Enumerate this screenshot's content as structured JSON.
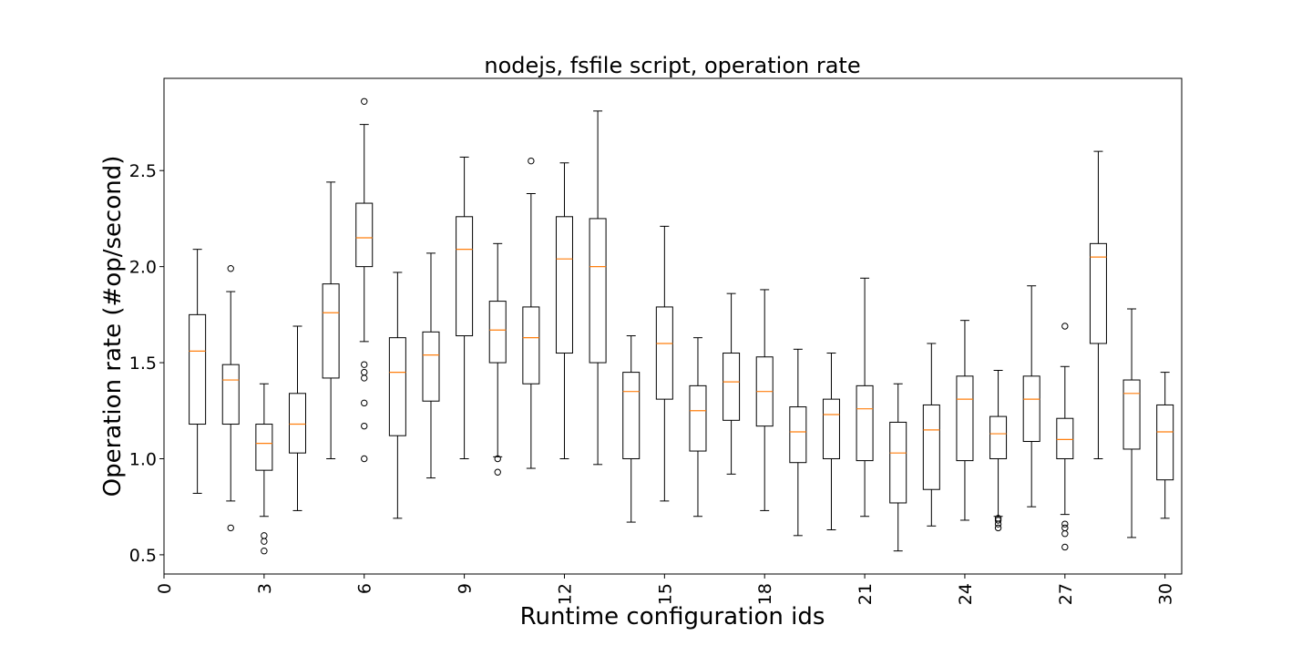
{
  "chart_data": {
    "type": "boxplot",
    "title": "nodejs, fsfile script, operation rate",
    "xlabel": "Runtime configuration ids",
    "ylabel": "Operation rate (#op/second)",
    "xlim": [
      0,
      30.5
    ],
    "ylim": [
      0.4,
      2.98
    ],
    "xticks": [
      "0",
      "3",
      "6",
      "9",
      "12",
      "15",
      "18",
      "21",
      "24",
      "27",
      "30"
    ],
    "yticks": [
      "0.5",
      "1.0",
      "1.5",
      "2.0",
      "2.5"
    ],
    "grid": false,
    "colors": {
      "median": "#ff7f0e",
      "box": "#000000",
      "background": "#ffffff"
    },
    "boxes": [
      {
        "id": 1,
        "whisker_low": 0.82,
        "q1": 1.18,
        "median": 1.56,
        "q3": 1.75,
        "whisker_high": 2.09,
        "outliers": []
      },
      {
        "id": 2,
        "whisker_low": 0.78,
        "q1": 1.18,
        "median": 1.41,
        "q3": 1.49,
        "whisker_high": 1.87,
        "outliers": [
          0.64,
          1.99
        ]
      },
      {
        "id": 3,
        "whisker_low": 0.7,
        "q1": 0.94,
        "median": 1.08,
        "q3": 1.18,
        "whisker_high": 1.39,
        "outliers": [
          0.52,
          0.57,
          0.6
        ]
      },
      {
        "id": 4,
        "whisker_low": 0.73,
        "q1": 1.03,
        "median": 1.18,
        "q3": 1.34,
        "whisker_high": 1.69,
        "outliers": []
      },
      {
        "id": 5,
        "whisker_low": 1.0,
        "q1": 1.42,
        "median": 1.76,
        "q3": 1.91,
        "whisker_high": 2.44,
        "outliers": []
      },
      {
        "id": 6,
        "whisker_low": 1.61,
        "q1": 2.0,
        "median": 2.15,
        "q3": 2.33,
        "whisker_high": 2.74,
        "outliers": [
          1.0,
          1.17,
          1.29,
          1.42,
          1.45,
          1.49,
          2.86
        ]
      },
      {
        "id": 7,
        "whisker_low": 0.69,
        "q1": 1.12,
        "median": 1.45,
        "q3": 1.63,
        "whisker_high": 1.97,
        "outliers": []
      },
      {
        "id": 8,
        "whisker_low": 0.9,
        "q1": 1.3,
        "median": 1.54,
        "q3": 1.66,
        "whisker_high": 2.07,
        "outliers": []
      },
      {
        "id": 9,
        "whisker_low": 1.0,
        "q1": 1.64,
        "median": 2.09,
        "q3": 2.26,
        "whisker_high": 2.57,
        "outliers": []
      },
      {
        "id": 10,
        "whisker_low": 1.01,
        "q1": 1.5,
        "median": 1.67,
        "q3": 1.82,
        "whisker_high": 2.12,
        "outliers": [
          0.93,
          1.0
        ]
      },
      {
        "id": 11,
        "whisker_low": 0.95,
        "q1": 1.39,
        "median": 1.63,
        "q3": 1.79,
        "whisker_high": 2.38,
        "outliers": [
          2.55
        ]
      },
      {
        "id": 12,
        "whisker_low": 1.0,
        "q1": 1.55,
        "median": 2.04,
        "q3": 2.26,
        "whisker_high": 2.54,
        "outliers": []
      },
      {
        "id": 13,
        "whisker_low": 0.97,
        "q1": 1.5,
        "median": 2.0,
        "q3": 2.25,
        "whisker_high": 2.81,
        "outliers": []
      },
      {
        "id": 14,
        "whisker_low": 0.67,
        "q1": 1.0,
        "median": 1.35,
        "q3": 1.45,
        "whisker_high": 1.64,
        "outliers": []
      },
      {
        "id": 15,
        "whisker_low": 0.78,
        "q1": 1.31,
        "median": 1.6,
        "q3": 1.79,
        "whisker_high": 2.21,
        "outliers": []
      },
      {
        "id": 16,
        "whisker_low": 0.7,
        "q1": 1.04,
        "median": 1.25,
        "q3": 1.38,
        "whisker_high": 1.63,
        "outliers": []
      },
      {
        "id": 17,
        "whisker_low": 0.92,
        "q1": 1.2,
        "median": 1.4,
        "q3": 1.55,
        "whisker_high": 1.86,
        "outliers": []
      },
      {
        "id": 18,
        "whisker_low": 0.73,
        "q1": 1.17,
        "median": 1.35,
        "q3": 1.53,
        "whisker_high": 1.88,
        "outliers": []
      },
      {
        "id": 19,
        "whisker_low": 0.6,
        "q1": 0.98,
        "median": 1.14,
        "q3": 1.27,
        "whisker_high": 1.57,
        "outliers": []
      },
      {
        "id": 20,
        "whisker_low": 0.63,
        "q1": 1.0,
        "median": 1.23,
        "q3": 1.31,
        "whisker_high": 1.55,
        "outliers": []
      },
      {
        "id": 21,
        "whisker_low": 0.7,
        "q1": 0.99,
        "median": 1.26,
        "q3": 1.38,
        "whisker_high": 1.94,
        "outliers": []
      },
      {
        "id": 22,
        "whisker_low": 0.52,
        "q1": 0.77,
        "median": 1.03,
        "q3": 1.19,
        "whisker_high": 1.39,
        "outliers": []
      },
      {
        "id": 23,
        "whisker_low": 0.65,
        "q1": 0.84,
        "median": 1.15,
        "q3": 1.28,
        "whisker_high": 1.6,
        "outliers": []
      },
      {
        "id": 24,
        "whisker_low": 0.68,
        "q1": 0.99,
        "median": 1.31,
        "q3": 1.43,
        "whisker_high": 1.72,
        "outliers": []
      },
      {
        "id": 25,
        "whisker_low": 0.7,
        "q1": 1.0,
        "median": 1.13,
        "q3": 1.22,
        "whisker_high": 1.46,
        "outliers": [
          0.64,
          0.66,
          0.68,
          0.69
        ]
      },
      {
        "id": 26,
        "whisker_low": 0.75,
        "q1": 1.09,
        "median": 1.31,
        "q3": 1.43,
        "whisker_high": 1.9,
        "outliers": []
      },
      {
        "id": 27,
        "whisker_low": 0.71,
        "q1": 1.0,
        "median": 1.1,
        "q3": 1.21,
        "whisker_high": 1.48,
        "outliers": [
          0.54,
          0.61,
          0.64,
          0.66,
          1.69
        ]
      },
      {
        "id": 28,
        "whisker_low": 1.0,
        "q1": 1.6,
        "median": 2.05,
        "q3": 2.12,
        "whisker_high": 2.6,
        "outliers": []
      },
      {
        "id": 29,
        "whisker_low": 0.59,
        "q1": 1.05,
        "median": 1.34,
        "q3": 1.41,
        "whisker_high": 1.78,
        "outliers": []
      },
      {
        "id": 30,
        "whisker_low": 0.69,
        "q1": 0.89,
        "median": 1.14,
        "q3": 1.28,
        "whisker_high": 1.45,
        "outliers": []
      }
    ]
  }
}
